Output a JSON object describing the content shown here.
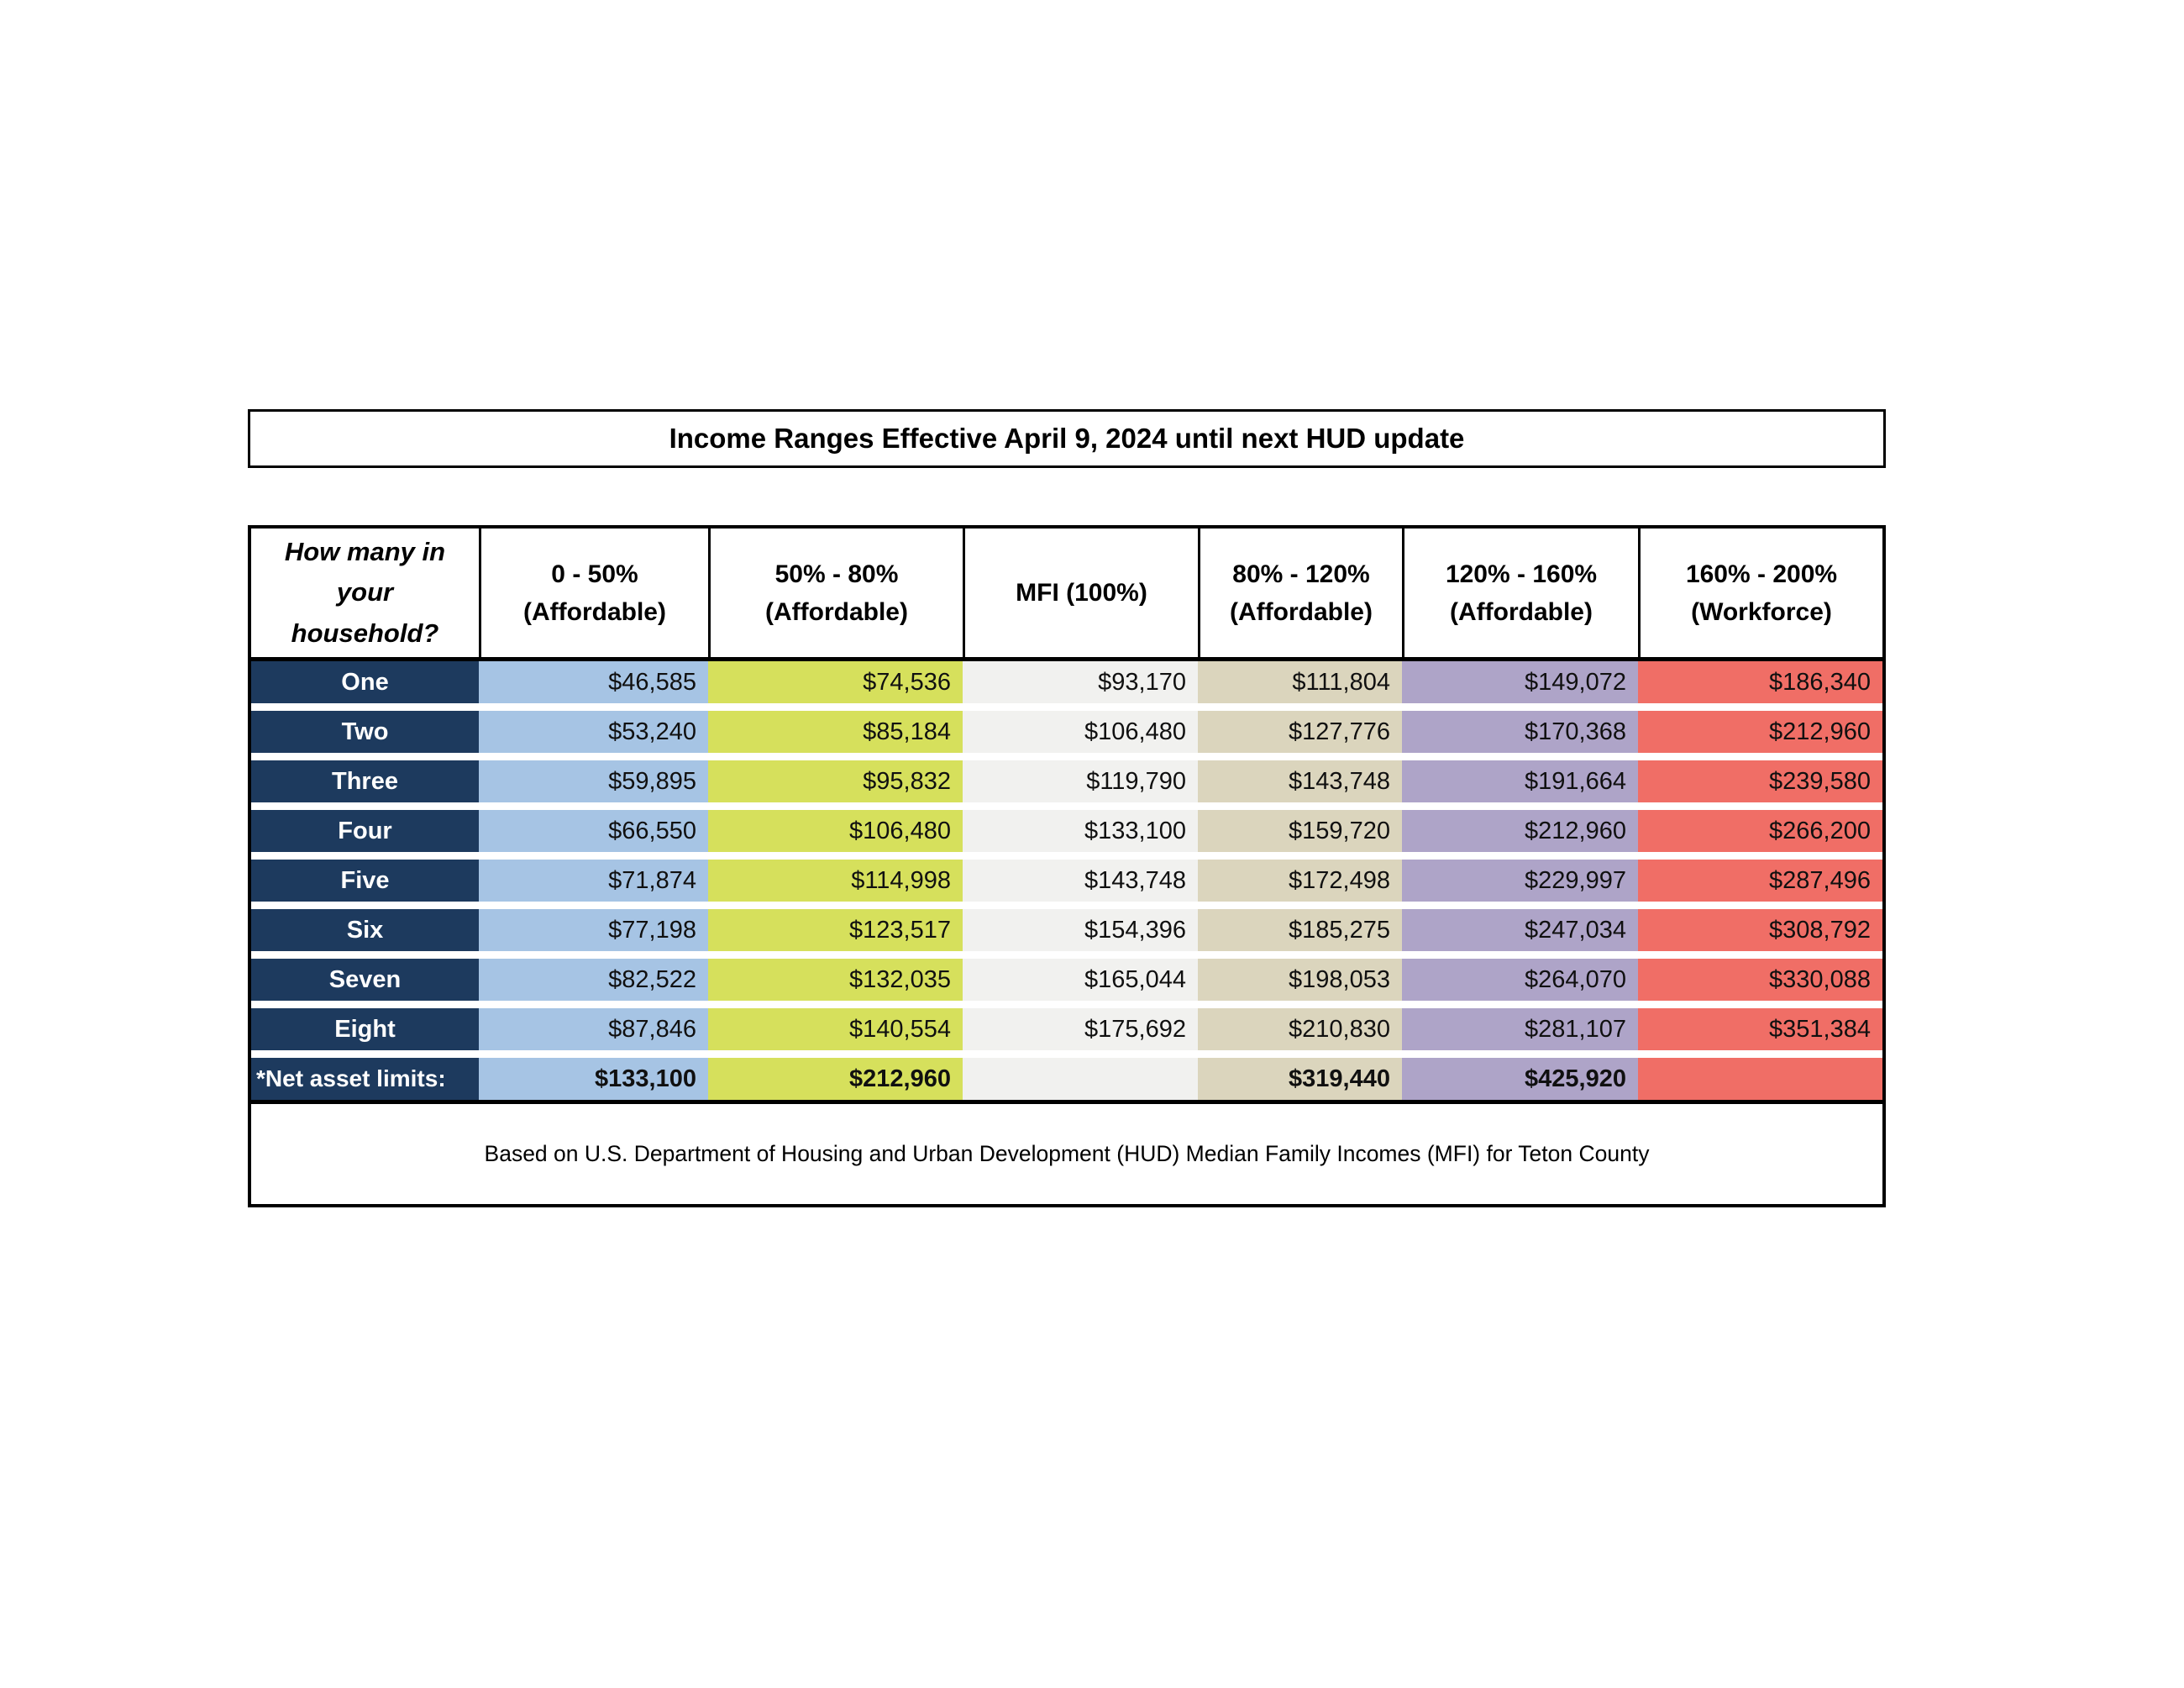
{
  "title": "Income Ranges Effective April 9, 2024 until next HUD update",
  "footer": {
    "note": "Based on U.S. Department of Housing and Urban Development (HUD) Median Family Incomes (MFI) for Teton County"
  },
  "colors": {
    "row_label_bg": "#1d3a5e",
    "row_label_text": "#ffffff",
    "col_0_50": "#a6c4e4",
    "col_50_80": "#d6e05c",
    "col_mfi": "#f1f1ef",
    "col_80_120": "#dbd5bd",
    "col_120_160": "#aea4c8",
    "col_160_200": "#f06e66",
    "border": "#000000"
  },
  "table": {
    "columns": [
      {
        "id": "household",
        "lines": [
          "How many in",
          "your",
          "household?"
        ],
        "bg": "#ffffff"
      },
      {
        "id": "0-50-affordable",
        "lines": [
          "0 - 50%",
          "(Affordable)"
        ],
        "bg": "#a6c4e4"
      },
      {
        "id": "50-80-affordable",
        "lines": [
          "50% - 80%",
          "(Affordable)"
        ],
        "bg": "#d6e05c"
      },
      {
        "id": "mfi-100",
        "lines": [
          "MFI (100%)"
        ],
        "bg": "#f1f1ef"
      },
      {
        "id": "80-120-affordable",
        "lines": [
          "80% - 120%",
          "(Affordable)"
        ],
        "bg": "#dbd5bd"
      },
      {
        "id": "120-160-affordable",
        "lines": [
          "120% - 160%",
          "(Affordable)"
        ],
        "bg": "#aea4c8"
      },
      {
        "id": "160-200-workforce",
        "lines": [
          "160% - 200%",
          "(Workforce)"
        ],
        "bg": "#f06e66"
      }
    ],
    "rows": [
      {
        "label": "One",
        "values": [
          "$46,585",
          "$74,536",
          "$93,170",
          "$111,804",
          "$149,072",
          "$186,340"
        ]
      },
      {
        "label": "Two",
        "values": [
          "$53,240",
          "$85,184",
          "$106,480",
          "$127,776",
          "$170,368",
          "$212,960"
        ]
      },
      {
        "label": "Three",
        "values": [
          "$59,895",
          "$95,832",
          "$119,790",
          "$143,748",
          "$191,664",
          "$239,580"
        ]
      },
      {
        "label": "Four",
        "values": [
          "$66,550",
          "$106,480",
          "$133,100",
          "$159,720",
          "$212,960",
          "$266,200"
        ]
      },
      {
        "label": "Five",
        "values": [
          "$71,874",
          "$114,998",
          "$143,748",
          "$172,498",
          "$229,997",
          "$287,496"
        ]
      },
      {
        "label": "Six",
        "values": [
          "$77,198",
          "$123,517",
          "$154,396",
          "$185,275",
          "$247,034",
          "$308,792"
        ]
      },
      {
        "label": "Seven",
        "values": [
          "$82,522",
          "$132,035",
          "$165,044",
          "$198,053",
          "$264,070",
          "$330,088"
        ]
      },
      {
        "label": "Eight",
        "values": [
          "$87,846",
          "$140,554",
          "$175,692",
          "$210,830",
          "$281,107",
          "$351,384"
        ]
      }
    ],
    "net_asset_row": {
      "label": "*Net asset limits:",
      "values": [
        "$133,100",
        "$212,960",
        "",
        "$319,440",
        "$425,920",
        ""
      ]
    }
  }
}
